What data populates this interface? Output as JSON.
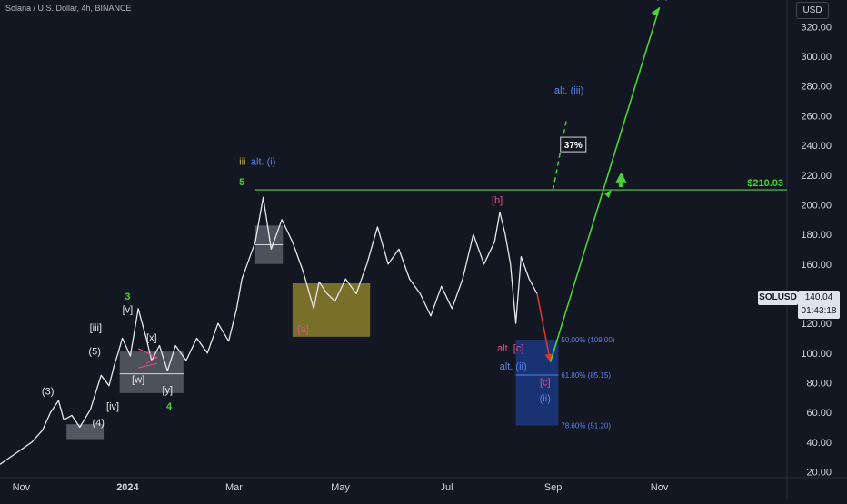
{
  "header": {
    "title": "Solana / U.S. Dollar, 4h, BINANCE"
  },
  "price_axis": {
    "currency": "USD"
  },
  "symbol_badge": {
    "symbol": "SOLUSD",
    "price": "140.04",
    "countdown": "01:43:18"
  },
  "colors": {
    "background": "#131722",
    "candle": "#e8e8e8",
    "green": "#4cd137",
    "blue": "#3e6fe0",
    "blue_zone": "#1c3f94",
    "olive_zone": "#8b7f2b",
    "gray_zone": "#9598a1",
    "pink": "#e84a8a",
    "yellow": "#c9b93c",
    "red": "#e0392b"
  },
  "chart_data": {
    "type": "line",
    "x_axis_ticks": [
      "Nov",
      "2024",
      "Mar",
      "May",
      "Jul",
      "Sep",
      "Nov"
    ],
    "x_tick_times": [
      0,
      2,
      4,
      6,
      8,
      10,
      12
    ],
    "y_axis_ticks": [
      "20.00",
      "40.00",
      "60.00",
      "80.00",
      "100.00",
      "120.00",
      "140.00",
      "160.00",
      "180.00",
      "200.00",
      "220.00",
      "240.00",
      "260.00",
      "280.00",
      "300.00",
      "320.00"
    ],
    "ylim": [
      16,
      338
    ],
    "xlim": [
      -0.4,
      14.4
    ],
    "series": [
      {
        "t": [
          -0.4,
          -0.2,
          0.0,
          0.2,
          0.4,
          0.55,
          0.7,
          0.8,
          0.95,
          1.1,
          1.3,
          1.5,
          1.65,
          1.75,
          1.82,
          1.9,
          2.05,
          2.2,
          2.35,
          2.45,
          2.6,
          2.75,
          2.9,
          3.1,
          3.3,
          3.5,
          3.7,
          3.9,
          4.05,
          4.15,
          4.25,
          4.4,
          4.55,
          4.7,
          4.9,
          5.1,
          5.3,
          5.5,
          5.6,
          5.75,
          5.9,
          6.1,
          6.3,
          6.5,
          6.7,
          6.9,
          7.1,
          7.3,
          7.5,
          7.7,
          7.9,
          8.1,
          8.3,
          8.5,
          8.7,
          8.9,
          9.0,
          9.1,
          9.2,
          9.3,
          9.4,
          9.55,
          9.7
        ],
        "close": [
          25,
          30,
          35,
          40,
          48,
          60,
          68,
          55,
          58,
          50,
          62,
          85,
          78,
          92,
          100,
          110,
          98,
          130,
          110,
          95,
          105,
          88,
          105,
          95,
          110,
          100,
          120,
          108,
          130,
          150,
          160,
          175,
          205,
          170,
          190,
          175,
          155,
          130,
          148,
          140,
          135,
          150,
          140,
          160,
          185,
          160,
          170,
          150,
          140,
          125,
          145,
          130,
          150,
          180,
          160,
          175,
          195,
          180,
          160,
          120,
          165,
          150,
          140
        ]
      }
    ],
    "levels": [
      {
        "label": "$210.03",
        "value": 210.03
      }
    ],
    "fib_levels": [
      {
        "label": "50.00% (109.00)",
        "value": 109.0
      },
      {
        "label": "61.80% (85.15)",
        "value": 85.15
      },
      {
        "label": "78.60% (51.20)",
        "value": 51.2
      }
    ],
    "projection": {
      "start": {
        "t": 9.7,
        "v": 140
      },
      "red_target": {
        "t": 9.95,
        "v": 94
      },
      "green_through": {
        "t": 11.1,
        "v": 210
      },
      "green_end": {
        "t": 12.0,
        "v": 333
      },
      "alt_dashed": [
        {
          "t": 10.0,
          "v": 210
        },
        {
          "t": 10.25,
          "v": 257
        }
      ],
      "probability": "37%"
    },
    "wave_labels": {
      "gray_3": "(3)",
      "gray_4": "(4)",
      "gray_5": "(5)",
      "gray_iii": "[iii]",
      "gray_iv": "[iv]",
      "gray_v": "[v]",
      "gray_x": "[x]",
      "gray_w": "[w]",
      "gray_y": "[y]",
      "green_3": "3",
      "green_4": "4",
      "green_5": "5",
      "yellow_iii": "iii",
      "blue_alt_i": "alt. (i)",
      "pink_b": "[b]",
      "pink_a": "[a]",
      "pink_alt_c": "alt. [c]",
      "pink_c": "[c]",
      "blue_alt_ii": "alt. (ii)",
      "blue_ii": "(ii)",
      "blue_alt_iii": "alt. (iii)",
      "blue_iii": "(iii)"
    }
  }
}
